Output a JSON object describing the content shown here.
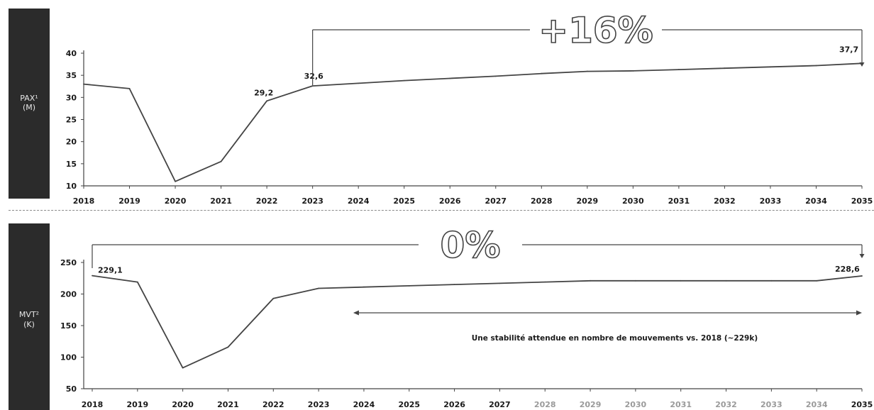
{
  "panel_labels": {
    "top_line1": "PAX¹",
    "top_line2": "(M)",
    "bottom_line1": "MVT²",
    "bottom_line2": "(K)"
  },
  "colors": {
    "line": "#444444",
    "text": "#1a1a1a",
    "label_box": "#2b2b2b",
    "faded_tick": "#9a9a9a"
  },
  "chart_data": [
    {
      "type": "line",
      "ylabel": "PAX¹ (M)",
      "x": [
        "2018",
        "2019",
        "2020",
        "2021",
        "2022",
        "2023",
        "2024",
        "2025",
        "2026",
        "2027",
        "2028",
        "2029",
        "2030",
        "2031",
        "2032",
        "2033",
        "2034",
        "2035"
      ],
      "y_ticks": [
        10,
        15,
        20,
        25,
        30,
        35,
        40
      ],
      "ylim": [
        10,
        40
      ],
      "values": [
        33.0,
        32.0,
        11.0,
        15.5,
        29.2,
        32.6,
        33.2,
        33.8,
        34.3,
        34.8,
        35.4,
        35.9,
        36.0,
        36.3,
        36.6,
        36.9,
        37.2,
        37.7
      ],
      "data_labels": [
        {
          "x": "2022",
          "text": "29,2"
        },
        {
          "x": "2023",
          "text": "32,6"
        },
        {
          "x": "2035",
          "text": "37,7"
        }
      ],
      "growth_annotation": {
        "text": "+16%",
        "from": "2023",
        "to": "2035"
      }
    },
    {
      "type": "line",
      "ylabel": "MVT² (K)",
      "x": [
        "2018",
        "2019",
        "2020",
        "2021",
        "2022",
        "2023",
        "2024",
        "2025",
        "2026",
        "2027",
        "2028",
        "2029",
        "2030",
        "2031",
        "2032",
        "2033",
        "2034",
        "2035"
      ],
      "y_ticks": [
        50,
        100,
        150,
        200,
        250
      ],
      "ylim": [
        50,
        250
      ],
      "values": [
        229.1,
        219.0,
        83.0,
        116.0,
        193.0,
        209.0,
        211.0,
        213.0,
        215.0,
        217.0,
        219.0,
        221.0,
        221.0,
        221.0,
        221.0,
        221.0,
        221.0,
        228.6
      ],
      "data_labels": [
        {
          "x": "2018",
          "text": "229,1"
        },
        {
          "x": "2035",
          "text": "228,6"
        }
      ],
      "growth_annotation": {
        "text": "0%",
        "from": "2018",
        "to": "2035"
      },
      "range_annotation": {
        "text": "Une stabilité attendue en nombre de mouvements vs. 2018 (~229k)",
        "from": "2024",
        "to": "2035"
      }
    }
  ]
}
